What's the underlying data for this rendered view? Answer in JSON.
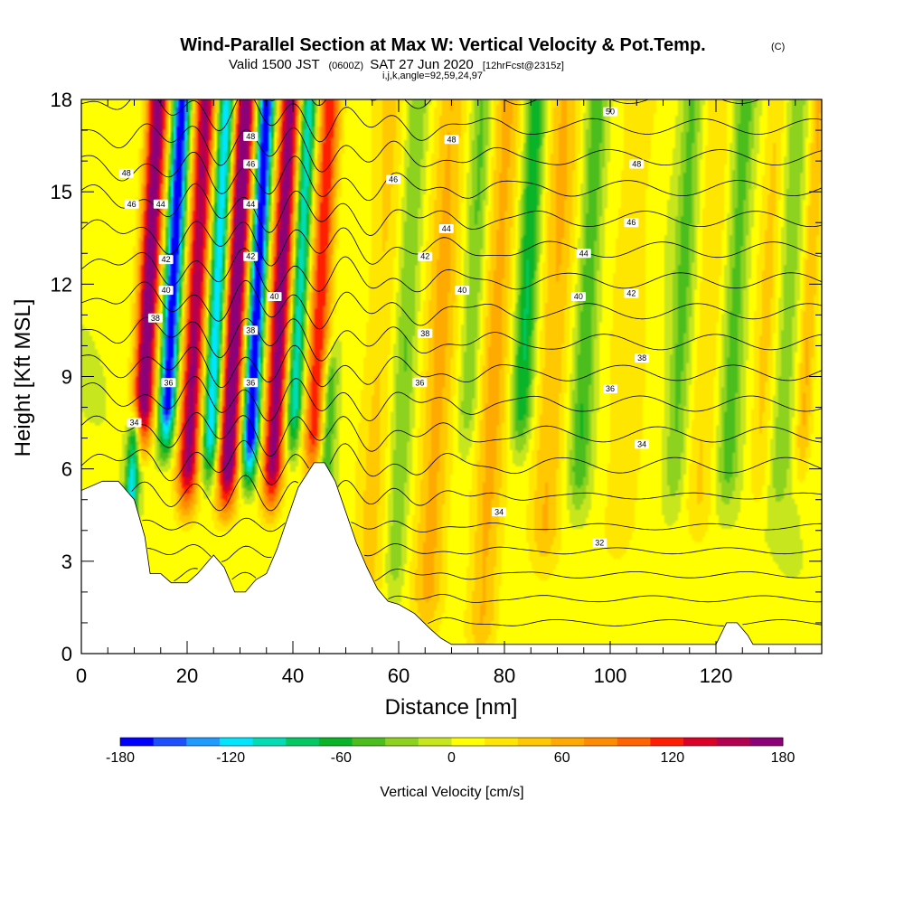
{
  "header": {
    "title": "Wind-Parallel Section at Max W: Vertical Velocity & Pot.Temp.",
    "title_mark": "(C)",
    "sub_main_a": "Valid 1500 JST",
    "sub_small_a": "(0600Z)",
    "sub_main_b": "SAT 27 Jun 2020",
    "sub_small_b": "[12hrFcst@2315z]",
    "grid_info": "i,j,k,angle=92,59,24,97"
  },
  "chart_data": {
    "type": "heatmap",
    "title": "Wind-Parallel Section at Max W: Vertical Velocity & Pot.Temp.",
    "xlabel": "Distance [nm]",
    "ylabel": "Height [Kft MSL]",
    "xlim": [
      0,
      140
    ],
    "ylim": [
      0,
      18
    ],
    "x_ticks": [
      0,
      20,
      40,
      60,
      80,
      100,
      120
    ],
    "y_ticks": [
      0,
      3,
      6,
      9,
      12,
      15,
      18
    ],
    "terrain_profile": [
      [
        0,
        5.3
      ],
      [
        4,
        5.6
      ],
      [
        7,
        5.6
      ],
      [
        10,
        5.0
      ],
      [
        12,
        3.8
      ],
      [
        13,
        2.6
      ],
      [
        15,
        2.6
      ],
      [
        17,
        2.3
      ],
      [
        20,
        2.3
      ],
      [
        22,
        2.6
      ],
      [
        24,
        3.0
      ],
      [
        25,
        3.2
      ],
      [
        27,
        2.8
      ],
      [
        29,
        2.0
      ],
      [
        31,
        2.0
      ],
      [
        33,
        2.4
      ],
      [
        35,
        2.6
      ],
      [
        37,
        3.4
      ],
      [
        39,
        4.4
      ],
      [
        41,
        5.4
      ],
      [
        44,
        6.2
      ],
      [
        46,
        6.2
      ],
      [
        48,
        5.6
      ],
      [
        50,
        4.6
      ],
      [
        52,
        3.6
      ],
      [
        54,
        2.8
      ],
      [
        56,
        2.1
      ],
      [
        58,
        1.7
      ],
      [
        60,
        1.6
      ],
      [
        63,
        1.3
      ],
      [
        66,
        0.8
      ],
      [
        68,
        0.5
      ],
      [
        70,
        0.3
      ],
      [
        80,
        0.3
      ],
      [
        100,
        0.3
      ],
      [
        118,
        0.3
      ],
      [
        120,
        0.3
      ],
      [
        122,
        1.0
      ],
      [
        124,
        1.0
      ],
      [
        126,
        0.6
      ],
      [
        127,
        0.3
      ],
      [
        140,
        0.3
      ]
    ],
    "vertical_velocity": {
      "label": "Vertical Velocity [cm/s]",
      "range": [
        -180,
        180
      ],
      "colorbar_ticks": [
        -180,
        -120,
        -60,
        0,
        60,
        120,
        180
      ],
      "colors": [
        "#0000ff",
        "#1e50ff",
        "#1e9bff",
        "#00e6ff",
        "#00dcb4",
        "#00c864",
        "#0ab428",
        "#4bbe1e",
        "#8cd21e",
        "#c8e61e",
        "#ffff00",
        "#ffe600",
        "#ffc800",
        "#ffaa00",
        "#ff8c00",
        "#ff6400",
        "#ff1e00",
        "#dc0028",
        "#b40050",
        "#8c0078"
      ],
      "features": [
        {
          "x": 12.0,
          "w": 2.0,
          "a": 180,
          "ymin": 8
        },
        {
          "x": 16.5,
          "w": 1.6,
          "a": -190,
          "ymin": 8
        },
        {
          "x": 21.0,
          "w": 2.0,
          "a": 160,
          "ymin": 6
        },
        {
          "x": 25.0,
          "w": 1.6,
          "a": -140,
          "ymin": 7
        },
        {
          "x": 28.5,
          "w": 2.0,
          "a": 190,
          "ymin": 6
        },
        {
          "x": 32.5,
          "w": 1.5,
          "a": -200,
          "ymin": 7
        },
        {
          "x": 37.0,
          "w": 2.0,
          "a": 170,
          "ymin": 6
        },
        {
          "x": 40.5,
          "w": 1.5,
          "a": -120,
          "ymin": 8
        },
        {
          "x": 44.5,
          "w": 2.0,
          "a": 120,
          "ymin": 7
        },
        {
          "x": 10.5,
          "w": 1.2,
          "a": -120,
          "ymin": 4,
          "ymax": 7
        },
        {
          "x": 47.0,
          "w": 1.5,
          "a": -70,
          "ymin": 4,
          "ymax": 9
        },
        {
          "x": 56.0,
          "w": 3.0,
          "a": 35,
          "ymin": 2
        },
        {
          "x": 61.0,
          "w": 2.0,
          "a": -40,
          "ymin": 3
        },
        {
          "x": 67.5,
          "w": 3.0,
          "a": 55,
          "ymin": 2
        },
        {
          "x": 73.5,
          "w": 2.0,
          "a": -45,
          "ymin": 8
        },
        {
          "x": 78.0,
          "w": 3.0,
          "a": 55,
          "ymin": 1
        },
        {
          "x": 83.5,
          "w": 2.0,
          "a": -80,
          "ymin": 8
        },
        {
          "x": 89.0,
          "w": 3.0,
          "a": 50,
          "ymin": 4
        },
        {
          "x": 95.0,
          "w": 2.0,
          "a": -55,
          "ymin": 6
        },
        {
          "x": 103.0,
          "w": 4.0,
          "a": 25,
          "ymin": 4
        },
        {
          "x": 113.0,
          "w": 2.0,
          "a": -45,
          "ymin": 6
        },
        {
          "x": 118.0,
          "w": 2.5,
          "a": 30,
          "ymin": 5
        },
        {
          "x": 123.0,
          "w": 2.0,
          "a": -50,
          "ymin": 6
        },
        {
          "x": 129.0,
          "w": 2.0,
          "a": 35,
          "ymin": 6
        },
        {
          "x": 133.0,
          "w": 2.0,
          "a": -35,
          "ymin": 6
        },
        {
          "x": 137.0,
          "w": 1.5,
          "a": 50,
          "ymin": 7
        }
      ]
    },
    "potential_temperature": {
      "units": "C",
      "contour_interval": 1,
      "labeled_values": [
        32,
        34,
        36,
        38,
        40,
        42,
        44,
        46,
        48,
        50
      ],
      "labels": [
        {
          "v": "34",
          "x": 10,
          "y": 7.5
        },
        {
          "v": "36",
          "x": 16.5,
          "y": 8.8
        },
        {
          "v": "38",
          "x": 14,
          "y": 10.9
        },
        {
          "v": "40",
          "x": 16,
          "y": 11.8
        },
        {
          "v": "42",
          "x": 16,
          "y": 12.8
        },
        {
          "v": "44",
          "x": 15,
          "y": 14.6
        },
        {
          "v": "46",
          "x": 9.5,
          "y": 14.6
        },
        {
          "v": "48",
          "x": 8.5,
          "y": 15.6
        },
        {
          "v": "36",
          "x": 32,
          "y": 8.8
        },
        {
          "v": "38",
          "x": 32,
          "y": 10.5
        },
        {
          "v": "40",
          "x": 36.5,
          "y": 11.6
        },
        {
          "v": "42",
          "x": 32,
          "y": 12.9
        },
        {
          "v": "44",
          "x": 32,
          "y": 14.6
        },
        {
          "v": "46",
          "x": 32,
          "y": 15.9
        },
        {
          "v": "48",
          "x": 32,
          "y": 16.8
        },
        {
          "v": "36",
          "x": 64,
          "y": 8.8
        },
        {
          "v": "38",
          "x": 65,
          "y": 10.4
        },
        {
          "v": "40",
          "x": 72,
          "y": 11.8
        },
        {
          "v": "42",
          "x": 65,
          "y": 12.9
        },
        {
          "v": "44",
          "x": 69,
          "y": 13.8
        },
        {
          "v": "46",
          "x": 59,
          "y": 15.4
        },
        {
          "v": "48",
          "x": 70,
          "y": 16.7
        },
        {
          "v": "50",
          "x": 100,
          "y": 17.6
        },
        {
          "v": "48",
          "x": 105,
          "y": 15.9
        },
        {
          "v": "46",
          "x": 104,
          "y": 14.0
        },
        {
          "v": "44",
          "x": 95,
          "y": 13.0
        },
        {
          "v": "42",
          "x": 104,
          "y": 11.7
        },
        {
          "v": "40",
          "x": 94,
          "y": 11.6
        },
        {
          "v": "38",
          "x": 106,
          "y": 9.6
        },
        {
          "v": "36",
          "x": 100,
          "y": 8.6
        },
        {
          "v": "34",
          "x": 106,
          "y": 6.8
        },
        {
          "v": "34",
          "x": 79,
          "y": 4.6
        },
        {
          "v": "32",
          "x": 98,
          "y": 3.6
        }
      ]
    }
  }
}
